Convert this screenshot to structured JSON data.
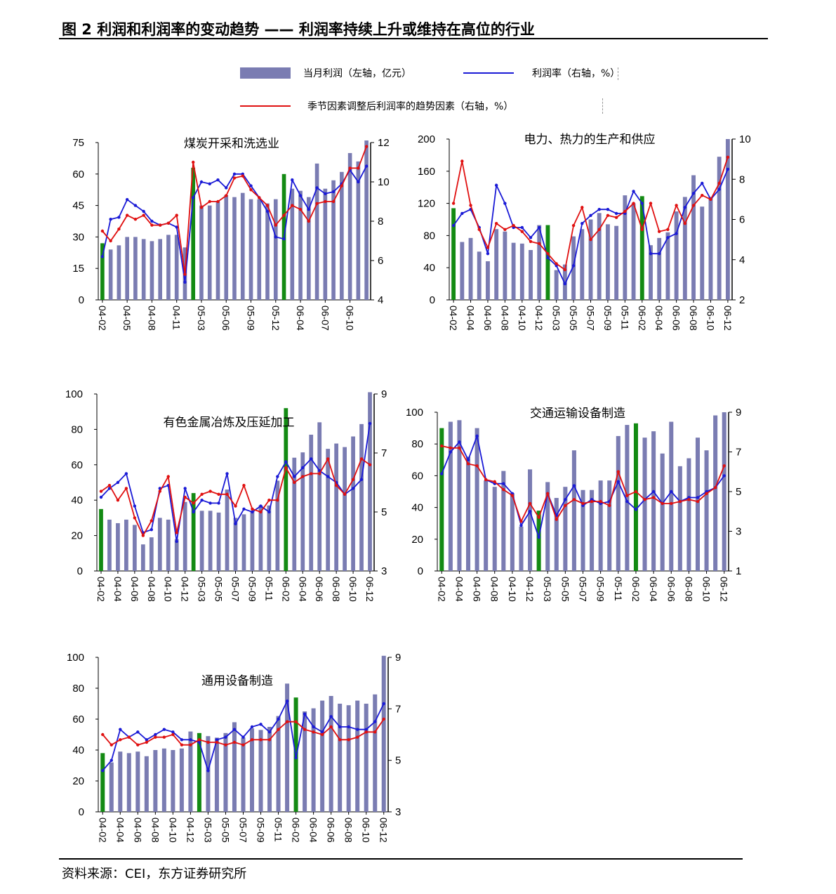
{
  "figure": {
    "title": "图 2 利润和利润率的变动趋势 —— 利润率持续上升或维持在高位的行业",
    "source": "资料来源：CEI，东方证券研究所"
  },
  "legend": {
    "bars": "当月利润（左轴，亿元）",
    "blue_line": "利润率（右轴，%）",
    "red_line": "季节因素调整后利润率的趋势因素（右轴，%）"
  },
  "colors": {
    "bar": "#7a7cb2",
    "bar_highlight": "#138a13",
    "rate": "#1a1ad6",
    "trend": "#e01010"
  },
  "chart_data": [
    {
      "type": "bar",
      "title": "煤炭开采和洗选业",
      "x_tick_labels": [
        "04-02",
        "04-05",
        "04-08",
        "04-11",
        "05-03",
        "05-06",
        "05-09",
        "05-12",
        "06-04",
        "06-07",
        "06-10"
      ],
      "ylim_left": [
        0,
        75
      ],
      "yticks_left": [
        0,
        15,
        30,
        45,
        60,
        75
      ],
      "ylim_right": [
        4,
        12
      ],
      "yticks_right": [
        4,
        6,
        8,
        10,
        12
      ],
      "highlight_months": [
        "04-02",
        "05-02",
        "06-02"
      ],
      "series": [
        {
          "name": "当月利润（左轴，亿元）",
          "axis": "left",
          "values": [
            27,
            24,
            26,
            30,
            30,
            29,
            28,
            29,
            31,
            31,
            25,
            63,
            45,
            45,
            47,
            50,
            49,
            51,
            48,
            48,
            46,
            48,
            60,
            53,
            52,
            49,
            65,
            53,
            57,
            61,
            70,
            66,
            76
          ]
        },
        {
          "name": "利润率（右轴，%）",
          "axis": "right",
          "values": [
            6.2,
            8.1,
            8.2,
            9.1,
            8.8,
            8.5,
            8.0,
            7.8,
            7.9,
            7.7,
            4.9,
            9.2,
            10.0,
            9.9,
            10.1,
            9.7,
            10.4,
            10.4,
            9.8,
            9.2,
            8.5,
            7.2,
            7.1,
            10.1,
            9.3,
            8.6,
            9.7,
            9.4,
            9.5,
            9.9,
            10.6,
            10.0,
            10.8
          ]
        },
        {
          "name": "季节因素调整后利润率的趋势因素（右轴，%）",
          "axis": "right",
          "values": [
            7.5,
            7.0,
            7.6,
            8.3,
            8.1,
            8.3,
            7.8,
            7.8,
            7.9,
            8.3,
            5.3,
            11.0,
            8.7,
            9.0,
            9.0,
            9.3,
            10.2,
            10.3,
            9.6,
            9.2,
            8.8,
            7.8,
            8.3,
            8.8,
            8.6,
            8.0,
            8.9,
            9.0,
            9.0,
            9.8,
            10.7,
            10.7,
            11.8
          ]
        }
      ]
    },
    {
      "type": "bar",
      "title": "电力、热力的生产和供应",
      "x_tick_labels": [
        "04-02",
        "04-04",
        "04-06",
        "04-08",
        "04-10",
        "04-12",
        "05-03",
        "05-05",
        "05-07",
        "05-09",
        "05-11",
        "06-02",
        "06-04",
        "06-06",
        "06-08",
        "06-10",
        "06-12"
      ],
      "ylim_left": [
        0,
        200
      ],
      "yticks_left": [
        0,
        40,
        80,
        120,
        160,
        200
      ],
      "ylim_right": [
        2,
        10
      ],
      "yticks_right": [
        2,
        4,
        6,
        8,
        10
      ],
      "highlight_months": [
        "04-02",
        "05-02",
        "06-02"
      ],
      "series": [
        {
          "name": "当月利润（左轴，亿元）",
          "axis": "left",
          "values": [
            114,
            72,
            77,
            60,
            48,
            88,
            85,
            71,
            70,
            62,
            93,
            93,
            37,
            44,
            79,
            88,
            100,
            108,
            94,
            92,
            130,
            120,
            129,
            68,
            77,
            84,
            110,
            128,
            155,
            116,
            128,
            178,
            200
          ]
        },
        {
          "name": "利润率（右轴，%）",
          "axis": "right",
          "values": [
            5.7,
            6.3,
            6.5,
            5.6,
            4.3,
            7.7,
            6.8,
            5.6,
            5.6,
            5.1,
            5.6,
            4.1,
            3.7,
            2.8,
            3.7,
            5.8,
            6.2,
            6.5,
            6.5,
            6.3,
            6.3,
            7.4,
            6.8,
            4.3,
            4.3,
            5.1,
            5.3,
            6.6,
            7.3,
            7.8,
            7.0,
            7.5,
            8.5
          ]
        },
        {
          "name": "季节因素调整后利润率的趋势因素（右轴，%）",
          "axis": "right",
          "values": [
            6.8,
            8.9,
            6.7,
            5.5,
            4.6,
            5.8,
            5.5,
            5.7,
            5.4,
            4.9,
            4.8,
            4.3,
            3.8,
            3.5,
            5.7,
            6.6,
            5.0,
            5.5,
            6.2,
            6.1,
            6.4,
            6.8,
            5.5,
            6.8,
            5.4,
            5.5,
            6.7,
            5.8,
            6.7,
            7.2,
            7.0,
            7.8,
            9.1
          ]
        }
      ]
    },
    {
      "type": "bar",
      "title": "有色金属冶炼及压延加工",
      "x_tick_labels": [
        "04-02",
        "04-04",
        "04-06",
        "04-08",
        "04-10",
        "04-12",
        "05-03",
        "05-05",
        "05-07",
        "05-09",
        "05-11",
        "06-02",
        "06-04",
        "06-06",
        "06-08",
        "06-10",
        "06-12"
      ],
      "ylim_left": [
        0,
        100
      ],
      "yticks_left": [
        0,
        20,
        40,
        60,
        80,
        100
      ],
      "ylim_right": [
        3,
        9
      ],
      "yticks_right": [
        3,
        5,
        7,
        9
      ],
      "highlight_months": [
        "04-02",
        "05-02",
        "06-02"
      ],
      "series": [
        {
          "name": "当月利润（左轴，亿元）",
          "axis": "left",
          "values": [
            35,
            29,
            27,
            29,
            26,
            15,
            19,
            30,
            29,
            18,
            39,
            44,
            34,
            34,
            33,
            46,
            30,
            32,
            34,
            37,
            37,
            51,
            92,
            64,
            67,
            77,
            84,
            69,
            72,
            70,
            76,
            83,
            101
          ]
        },
        {
          "name": "利润率（右轴，%）",
          "axis": "right",
          "values": [
            5.5,
            5.8,
            6.0,
            6.3,
            5.2,
            4.3,
            4.4,
            5.8,
            5.9,
            4.0,
            5.8,
            5.0,
            5.4,
            5.3,
            5.3,
            6.3,
            4.6,
            5.1,
            5.0,
            5.2,
            5.0,
            6.2,
            6.7,
            6.2,
            6.5,
            6.8,
            6.4,
            6.2,
            6.0,
            5.6,
            5.8,
            6.1,
            8.0
          ]
        },
        {
          "name": "季节因素调整后利润率的趋势因素（右轴，%）",
          "axis": "right",
          "values": [
            5.7,
            5.9,
            5.4,
            5.8,
            4.8,
            4.2,
            4.7,
            5.7,
            6.2,
            4.3,
            5.5,
            5.3,
            5.6,
            5.7,
            5.6,
            5.6,
            5.2,
            5.9,
            5.1,
            5.0,
            5.4,
            5.4,
            6.5,
            6.0,
            6.2,
            6.3,
            6.3,
            6.8,
            5.9,
            5.6,
            6.1,
            6.8,
            6.6
          ]
        }
      ]
    },
    {
      "type": "bar",
      "title": "交通运输设备制造",
      "x_tick_labels": [
        "04-02",
        "04-04",
        "04-06",
        "04-08",
        "04-10",
        "04-12",
        "05-03",
        "05-05",
        "05-07",
        "05-09",
        "05-11",
        "06-02",
        "06-04",
        "06-06",
        "06-08",
        "06-10",
        "06-12"
      ],
      "ylim_left": [
        0,
        100
      ],
      "yticks_left": [
        0,
        20,
        40,
        60,
        80,
        100
      ],
      "ylim_right": [
        1,
        9
      ],
      "yticks_right": [
        1,
        3,
        5,
        7,
        9
      ],
      "highlight_months": [
        "04-02",
        "05-02",
        "06-02"
      ],
      "series": [
        {
          "name": "当月利润（左轴，亿元）",
          "axis": "left",
          "values": [
            90,
            94,
            95,
            72,
            90,
            57,
            53,
            63,
            49,
            28,
            64,
            38,
            56,
            46,
            53,
            76,
            51,
            51,
            57,
            57,
            85,
            92,
            93,
            84,
            88,
            74,
            94,
            66,
            71,
            84,
            76,
            98,
            100
          ]
        },
        {
          "name": "利润率（右轴，%）",
          "axis": "right",
          "values": [
            5.9,
            7.0,
            7.5,
            6.6,
            7.8,
            5.6,
            5.4,
            5.4,
            4.9,
            3.3,
            4.0,
            2.7,
            4.9,
            3.8,
            4.6,
            5.3,
            4.3,
            4.6,
            4.4,
            4.5,
            5.5,
            4.5,
            4.1,
            4.6,
            5.0,
            4.4,
            5.0,
            4.5,
            4.7,
            4.7,
            5.0,
            5.2,
            5.8
          ]
        },
        {
          "name": "季节因素调整后利润率的趋势因素（右轴，%）",
          "axis": "right",
          "values": [
            7.3,
            7.2,
            7.2,
            6.4,
            6.3,
            5.6,
            5.5,
            5.1,
            4.8,
            3.5,
            4.4,
            3.7,
            4.9,
            3.6,
            4.3,
            4.6,
            4.4,
            4.5,
            4.5,
            4.3,
            6.0,
            4.8,
            5.0,
            4.6,
            4.7,
            4.4,
            4.4,
            4.5,
            4.6,
            4.5,
            4.9,
            5.2,
            6.3
          ]
        }
      ]
    },
    {
      "type": "bar",
      "title": "通用设备制造",
      "x_tick_labels": [
        "04-02",
        "04-04",
        "04-06",
        "04-08",
        "04-10",
        "04-12",
        "05-03",
        "05-05",
        "05-07",
        "05-09",
        "05-11",
        "06-02",
        "06-04",
        "06-06",
        "06-08",
        "06-10",
        "06-12"
      ],
      "ylim_left": [
        0,
        100
      ],
      "yticks_left": [
        0,
        20,
        40,
        60,
        80,
        100
      ],
      "ylim_right": [
        3,
        9
      ],
      "yticks_right": [
        3,
        5,
        7,
        9
      ],
      "highlight_months": [
        "04-02",
        "05-02",
        "06-02"
      ],
      "series": [
        {
          "name": "当月利润（左轴，亿元）",
          "axis": "left",
          "values": [
            38,
            32,
            39,
            38,
            39,
            36,
            40,
            41,
            40,
            41,
            52,
            51,
            49,
            48,
            51,
            58,
            48,
            54,
            53,
            55,
            62,
            83,
            74,
            65,
            67,
            72,
            75,
            70,
            69,
            72,
            70,
            76,
            101
          ]
        },
        {
          "name": "利润率（右轴，%）",
          "axis": "right",
          "values": [
            4.6,
            5.0,
            6.2,
            5.9,
            6.1,
            5.8,
            6.0,
            6.2,
            6.1,
            5.8,
            5.8,
            5.7,
            4.6,
            5.8,
            5.9,
            6.2,
            5.9,
            6.3,
            6.4,
            6.1,
            6.6,
            7.3,
            5.1,
            6.8,
            6.3,
            6.1,
            6.7,
            6.3,
            6.3,
            6.2,
            6.2,
            6.5,
            7.2
          ]
        },
        {
          "name": "季节因素调整后利润率的趋势因素（右轴，%）",
          "axis": "right",
          "values": [
            6.0,
            5.6,
            5.8,
            5.9,
            5.6,
            5.7,
            5.9,
            5.9,
            6.0,
            5.6,
            5.6,
            5.8,
            5.7,
            5.7,
            5.6,
            5.7,
            5.6,
            5.8,
            5.8,
            5.8,
            6.2,
            6.5,
            6.5,
            6.2,
            6.1,
            6.0,
            6.3,
            5.8,
            5.8,
            5.9,
            6.1,
            6.1,
            6.6
          ]
        }
      ]
    }
  ]
}
